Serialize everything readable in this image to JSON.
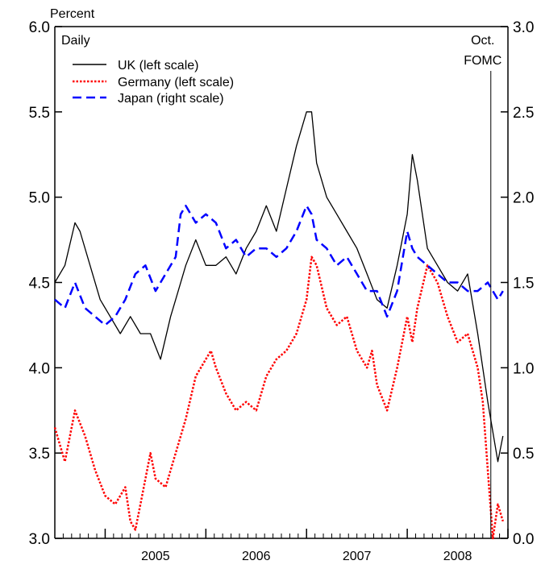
{
  "chart_data": {
    "type": "line",
    "left_axis_unit": "Percent",
    "frequency_note": "Daily",
    "event_label_line1": "Oct.",
    "event_label_line2": "FOMC",
    "event_x": 2008.83,
    "xlim": [
      2004.5,
      2009.0
    ],
    "x_ticks": [
      2005,
      2006,
      2007,
      2008
    ],
    "x_tick_labels": [
      "2005",
      "2006",
      "2007",
      "2008"
    ],
    "ylim_left": [
      3.0,
      6.0
    ],
    "ylim_right": [
      0.0,
      3.0
    ],
    "left_ticks": [
      3.0,
      3.5,
      4.0,
      4.5,
      5.0,
      5.5,
      6.0
    ],
    "left_tick_labels": [
      "3.0",
      "3.5",
      "4.0",
      "4.5",
      "5.0",
      "5.5",
      "6.0"
    ],
    "right_ticks": [
      0.0,
      0.5,
      1.0,
      1.5,
      2.0,
      2.5,
      3.0
    ],
    "right_tick_labels": [
      "0.0",
      "0.5",
      "1.0",
      "1.5",
      "2.0",
      "2.5",
      "3.0"
    ],
    "legend_position": "top-left",
    "series": [
      {
        "name": "UK (left scale)",
        "axis": "left",
        "color": "#000000",
        "style": "solid",
        "x": [
          2004.5,
          2004.6,
          2004.7,
          2004.75,
          2004.85,
          2004.95,
          2005.05,
          2005.15,
          2005.25,
          2005.35,
          2005.45,
          2005.55,
          2005.65,
          2005.7,
          2005.8,
          2005.9,
          2006.0,
          2006.1,
          2006.2,
          2006.3,
          2006.4,
          2006.5,
          2006.6,
          2006.7,
          2006.8,
          2006.9,
          2007.0,
          2007.05,
          2007.1,
          2007.2,
          2007.3,
          2007.4,
          2007.5,
          2007.6,
          2007.7,
          2007.8,
          2007.9,
          2008.0,
          2008.05,
          2008.1,
          2008.2,
          2008.3,
          2008.4,
          2008.5,
          2008.6,
          2008.7,
          2008.8,
          2008.9,
          2008.95
        ],
        "y": [
          4.5,
          4.6,
          4.85,
          4.8,
          4.6,
          4.4,
          4.3,
          4.2,
          4.3,
          4.2,
          4.2,
          4.05,
          4.3,
          4.4,
          4.6,
          4.75,
          4.6,
          4.6,
          4.65,
          4.55,
          4.7,
          4.8,
          4.95,
          4.8,
          5.05,
          5.3,
          5.5,
          5.5,
          5.2,
          5.0,
          4.9,
          4.8,
          4.7,
          4.55,
          4.4,
          4.35,
          4.6,
          4.9,
          5.25,
          5.1,
          4.7,
          4.6,
          4.5,
          4.45,
          4.55,
          4.2,
          3.8,
          3.45,
          3.6
        ]
      },
      {
        "name": "Germany (left scale)",
        "axis": "left",
        "color": "#ff0000",
        "style": "dotted",
        "x": [
          2004.5,
          2004.55,
          2004.6,
          2004.7,
          2004.8,
          2004.9,
          2005.0,
          2005.1,
          2005.15,
          2005.2,
          2005.25,
          2005.3,
          2005.35,
          2005.45,
          2005.5,
          2005.6,
          2005.7,
          2005.8,
          2005.9,
          2006.0,
          2006.05,
          2006.1,
          2006.2,
          2006.3,
          2006.4,
          2006.5,
          2006.6,
          2006.7,
          2006.8,
          2006.9,
          2007.0,
          2007.05,
          2007.1,
          2007.2,
          2007.3,
          2007.4,
          2007.5,
          2007.6,
          2007.65,
          2007.7,
          2007.8,
          2007.9,
          2008.0,
          2008.05,
          2008.1,
          2008.2,
          2008.3,
          2008.4,
          2008.5,
          2008.6,
          2008.7,
          2008.75,
          2008.8,
          2008.85,
          2008.9,
          2008.95
        ],
        "y": [
          3.65,
          3.55,
          3.45,
          3.75,
          3.6,
          3.4,
          3.25,
          3.2,
          3.25,
          3.3,
          3.1,
          3.05,
          3.2,
          3.5,
          3.35,
          3.3,
          3.5,
          3.7,
          3.95,
          4.05,
          4.1,
          4.0,
          3.85,
          3.75,
          3.8,
          3.75,
          3.95,
          4.05,
          4.1,
          4.2,
          4.4,
          4.65,
          4.6,
          4.35,
          4.25,
          4.3,
          4.1,
          4.0,
          4.1,
          3.9,
          3.75,
          4.0,
          4.3,
          4.15,
          4.35,
          4.6,
          4.5,
          4.3,
          4.15,
          4.2,
          4.0,
          3.8,
          3.4,
          3.0,
          3.2,
          3.1
        ]
      },
      {
        "name": "Japan (right scale)",
        "axis": "right",
        "color": "#0000ff",
        "style": "dashed",
        "x": [
          2004.5,
          2004.6,
          2004.7,
          2004.8,
          2004.9,
          2005.0,
          2005.1,
          2005.2,
          2005.3,
          2005.4,
          2005.5,
          2005.6,
          2005.7,
          2005.75,
          2005.8,
          2005.9,
          2006.0,
          2006.1,
          2006.2,
          2006.3,
          2006.4,
          2006.5,
          2006.6,
          2006.7,
          2006.8,
          2006.9,
          2007.0,
          2007.05,
          2007.1,
          2007.2,
          2007.3,
          2007.4,
          2007.5,
          2007.6,
          2007.7,
          2007.8,
          2007.9,
          2008.0,
          2008.05,
          2008.1,
          2008.2,
          2008.3,
          2008.4,
          2008.5,
          2008.6,
          2008.7,
          2008.8,
          2008.9,
          2008.95
        ],
        "y": [
          1.4,
          1.35,
          1.5,
          1.35,
          1.3,
          1.25,
          1.3,
          1.4,
          1.55,
          1.6,
          1.45,
          1.55,
          1.65,
          1.9,
          1.95,
          1.85,
          1.9,
          1.85,
          1.7,
          1.75,
          1.65,
          1.7,
          1.7,
          1.65,
          1.7,
          1.8,
          1.95,
          1.9,
          1.75,
          1.7,
          1.6,
          1.65,
          1.55,
          1.45,
          1.45,
          1.3,
          1.45,
          1.8,
          1.7,
          1.65,
          1.6,
          1.55,
          1.5,
          1.5,
          1.45,
          1.45,
          1.5,
          1.4,
          1.45
        ]
      }
    ]
  }
}
